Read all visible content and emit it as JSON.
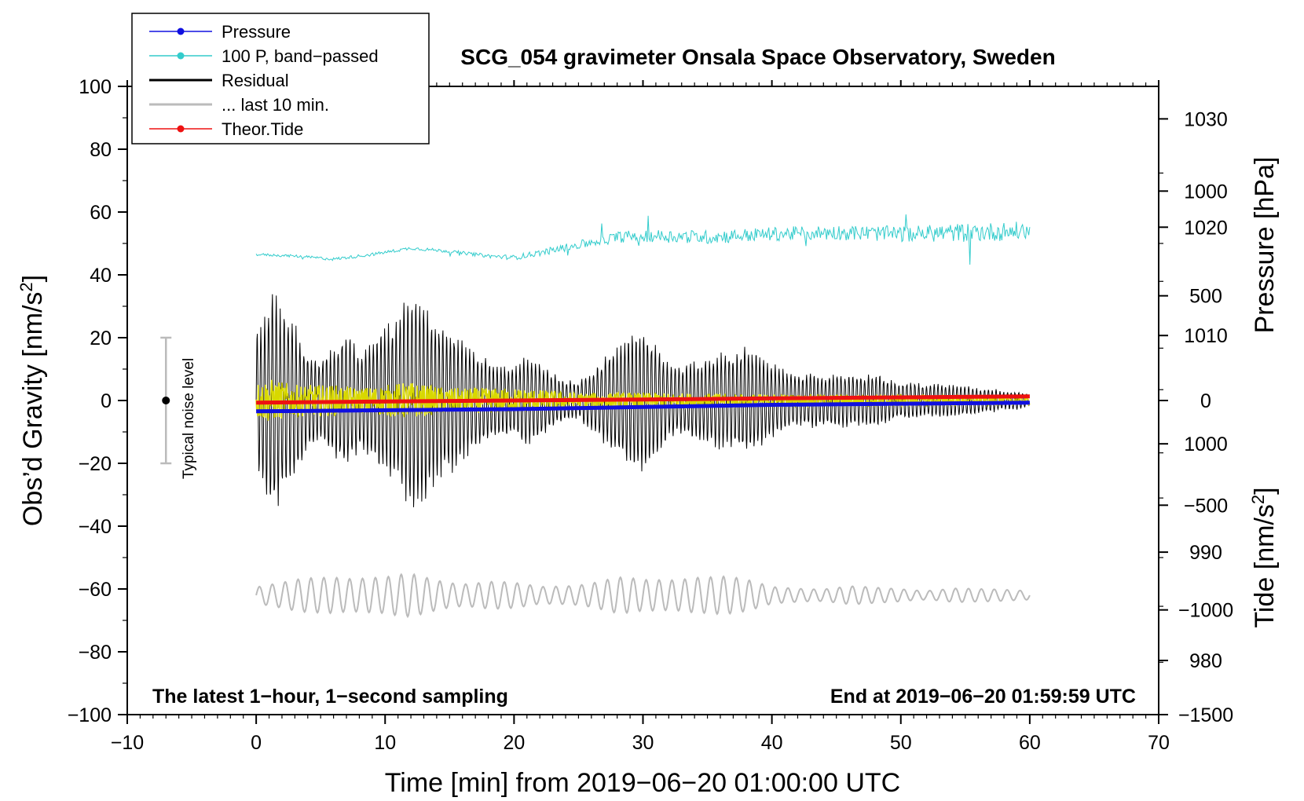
{
  "chart_data": {
    "type": "line",
    "title": "SCG_054 gravimeter Onsala Space Observatory, Sweden",
    "xlabel": "Time [min] from 2019−06−20 01:00:00 UTC",
    "xlim": [
      -10,
      70
    ],
    "x_ticks": [
      -10,
      0,
      10,
      20,
      30,
      40,
      50,
      60,
      70
    ],
    "left_axis": {
      "label": "Obs’d Gravity [nm/s",
      "label_sup": "2",
      "label_end": "]",
      "ylim": [
        -100,
        100
      ],
      "ticks": [
        -100,
        -80,
        -60,
        -40,
        -20,
        0,
        20,
        40,
        60,
        80,
        100
      ]
    },
    "pressure_axis": {
      "label": "Pressure [hPa]",
      "ylim": [
        975,
        1033
      ],
      "ticks": [
        980,
        990,
        1000,
        1010,
        1020,
        1030
      ]
    },
    "tide_axis": {
      "label": "Tide [nm/s",
      "label_sup": "2",
      "label_end": "]",
      "ylim": [
        -1500,
        1500
      ],
      "ticks": [
        -1500,
        -1000,
        -500,
        0,
        500,
        1000
      ]
    },
    "legend": {
      "position": "top-left",
      "entries": [
        {
          "label": "Pressure",
          "color": "#1010e0",
          "marker": true
        },
        {
          "label": "100 P, band−passed",
          "color": "#33cccc",
          "marker": true
        },
        {
          "label": "Residual",
          "color": "#000000",
          "marker": false
        },
        {
          "label": "... last 10 min.",
          "color": "#bbbbbb",
          "marker": false
        },
        {
          "label": "Theor.Tide",
          "color": "#ee1111",
          "marker": true
        }
      ]
    },
    "noise_bar": {
      "label": "Typical noise level",
      "x": -7,
      "center": 0,
      "range": [
        -20,
        20
      ],
      "color": "#bbbbbb"
    },
    "annotations": {
      "left": "The latest 1−hour, 1−second sampling",
      "right": "End at 2019−06−20 01:59:59 UTC"
    },
    "colors": {
      "pressure": "#1010e0",
      "band_passed": "#33cccc",
      "residual": "#000000",
      "residual_lowpass": "#d8d800",
      "last10": "#bbbbbb",
      "tide": "#ee1111"
    },
    "series": [
      {
        "name": "Pressure",
        "axis": "pressure",
        "x": [
          0,
          10,
          20,
          30,
          40,
          50,
          60
        ],
        "values": [
          1003.0,
          1003.1,
          1003.2,
          1003.4,
          1003.6,
          1003.7,
          1003.8
        ]
      },
      {
        "name": "100 P, band-passed",
        "axis": "left",
        "x": [
          0,
          3,
          6,
          9,
          12,
          15,
          18,
          20,
          22,
          25,
          28,
          30,
          35,
          40,
          45,
          50,
          55,
          60
        ],
        "values": [
          46.5,
          46.0,
          45.0,
          46.5,
          48.5,
          47.5,
          46.0,
          45.5,
          47.0,
          49.5,
          52.0,
          52.5,
          52.0,
          53.0,
          53.5,
          53.0,
          53.5,
          54.0
        ],
        "noise_amplitude": [
          0.4,
          0.4,
          0.5,
          0.5,
          0.5,
          0.5,
          0.6,
          0.8,
          1.0,
          1.4,
          1.8,
          2.0,
          2.2,
          2.2,
          2.4,
          2.5,
          3.0,
          3.0
        ]
      },
      {
        "name": "Residual",
        "axis": "left",
        "period_min": 0.3,
        "envelope_x": [
          0,
          0.5,
          1,
          1.5,
          2,
          3,
          4,
          5,
          6,
          7,
          8,
          9,
          10,
          11,
          12,
          13,
          14,
          15,
          16,
          17,
          18,
          19,
          20,
          21,
          22,
          23,
          24,
          25,
          26,
          27,
          28,
          29,
          30,
          31,
          32,
          33,
          34,
          35,
          36,
          37,
          38,
          39,
          40,
          41,
          42,
          43,
          44,
          45,
          46,
          47,
          48,
          49,
          50,
          51,
          52,
          53,
          54,
          55,
          56,
          57,
          58,
          59,
          60
        ],
        "envelope": [
          22,
          26,
          34,
          37,
          30,
          25,
          16,
          14,
          18,
          22,
          17,
          19,
          24,
          28,
          38,
          33,
          26,
          24,
          20,
          16,
          13,
          12,
          11,
          15,
          13,
          9,
          7,
          6,
          10,
          14,
          18,
          22,
          23,
          19,
          12,
          11,
          13,
          14,
          16,
          15,
          18,
          15,
          12,
          10,
          8,
          9,
          8,
          9,
          9,
          8,
          9,
          7,
          6,
          6,
          5,
          6,
          5,
          5,
          4,
          4,
          3,
          3,
          2
        ]
      },
      {
        "name": "Residual (low-passed)",
        "axis": "left",
        "envelope_x": [
          0,
          1,
          2,
          3,
          5,
          6,
          8,
          10,
          12,
          13,
          15,
          20,
          25,
          30,
          40,
          50,
          60
        ],
        "envelope": [
          6,
          7,
          6,
          5,
          5,
          5,
          4,
          5,
          6,
          5,
          4,
          4,
          2.5,
          2.5,
          2,
          2,
          1.5
        ]
      },
      {
        "name": "... last 10 min.",
        "axis": "left",
        "baseline": -62,
        "period_min": 1.0,
        "envelope_x": [
          0,
          2,
          4,
          6,
          8,
          10,
          12,
          14,
          16,
          18,
          20,
          22,
          24,
          26,
          28,
          30,
          32,
          34,
          36,
          38,
          40,
          42,
          44,
          46,
          48,
          50,
          52,
          54,
          56,
          58,
          60
        ],
        "envelope": [
          3,
          4,
          6,
          8,
          7,
          6,
          7,
          6,
          5,
          5,
          4,
          3,
          4,
          5,
          6,
          5,
          6,
          8,
          7,
          5,
          3,
          3,
          2.5,
          3,
          2.5,
          2.5,
          2,
          2.5,
          2,
          2,
          2
        ]
      },
      {
        "name": "Theor.Tide",
        "axis": "tide",
        "x": [
          0,
          10,
          20,
          30,
          40,
          50,
          60
        ],
        "values": [
          -10,
          -5,
          0,
          5,
          10,
          15,
          20
        ]
      }
    ]
  }
}
